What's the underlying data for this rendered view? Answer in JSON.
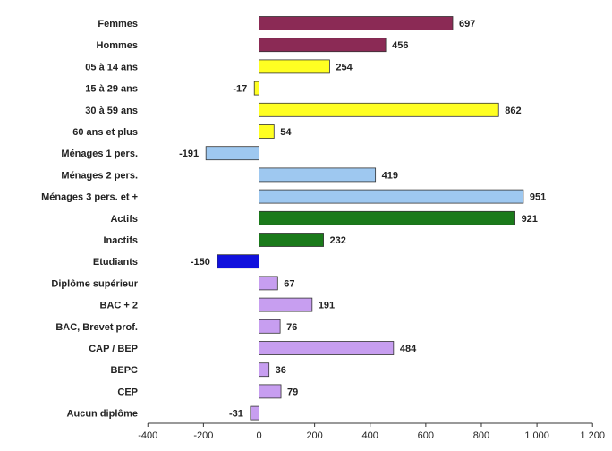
{
  "chart_data": {
    "type": "bar",
    "orientation": "horizontal",
    "title": "",
    "xlabel": "",
    "ylabel": "",
    "xlim": [
      -400,
      1200
    ],
    "x_ticks": [
      -400,
      -200,
      0,
      200,
      400,
      600,
      800,
      1000,
      1200
    ],
    "x_tick_labels": [
      "-400",
      "-200",
      "0",
      "200",
      "400",
      "600",
      "800",
      "1 000",
      "1 200"
    ],
    "grid": false,
    "legend": "none",
    "bars": [
      {
        "label": "Femmes",
        "value": 697,
        "value_label": "697",
        "color": "#8b2a55"
      },
      {
        "label": "Hommes",
        "value": 456,
        "value_label": "456",
        "color": "#8b2a55"
      },
      {
        "label": "05 à 14 ans",
        "value": 254,
        "value_label": "254",
        "color": "#ffff22"
      },
      {
        "label": "15 à 29 ans",
        "value": -17,
        "value_label": "-17",
        "color": "#ffff22"
      },
      {
        "label": "30 à 59 ans",
        "value": 862,
        "value_label": "862",
        "color": "#ffff22"
      },
      {
        "label": "60 ans et plus",
        "value": 54,
        "value_label": "54",
        "color": "#ffff22"
      },
      {
        "label": "Ménages 1 pers.",
        "value": -191,
        "value_label": "-191",
        "color": "#9ec8f0"
      },
      {
        "label": "Ménages 2 pers.",
        "value": 419,
        "value_label": "419",
        "color": "#9ec8f0"
      },
      {
        "label": "Ménages 3 pers. et +",
        "value": 951,
        "value_label": "951",
        "color": "#9ec8f0"
      },
      {
        "label": "Actifs",
        "value": 921,
        "value_label": "921",
        "color": "#1a7a1a"
      },
      {
        "label": "Inactifs",
        "value": 232,
        "value_label": "232",
        "color": "#1a7a1a"
      },
      {
        "label": "Etudiants",
        "value": -150,
        "value_label": "-150",
        "color": "#1111dd"
      },
      {
        "label": "Diplôme supérieur",
        "value": 67,
        "value_label": "67",
        "color": "#c79ef0"
      },
      {
        "label": "BAC + 2",
        "value": 191,
        "value_label": "191",
        "color": "#c79ef0"
      },
      {
        "label": "BAC, Brevet prof.",
        "value": 76,
        "value_label": "76",
        "color": "#c79ef0"
      },
      {
        "label": "CAP / BEP",
        "value": 484,
        "value_label": "484",
        "color": "#c79ef0"
      },
      {
        "label": "BEPC",
        "value": 36,
        "value_label": "36",
        "color": "#c79ef0"
      },
      {
        "label": "CEP",
        "value": 79,
        "value_label": "79",
        "color": "#c79ef0"
      },
      {
        "label": "Aucun diplôme",
        "value": -31,
        "value_label": "-31",
        "color": "#c79ef0"
      }
    ]
  }
}
